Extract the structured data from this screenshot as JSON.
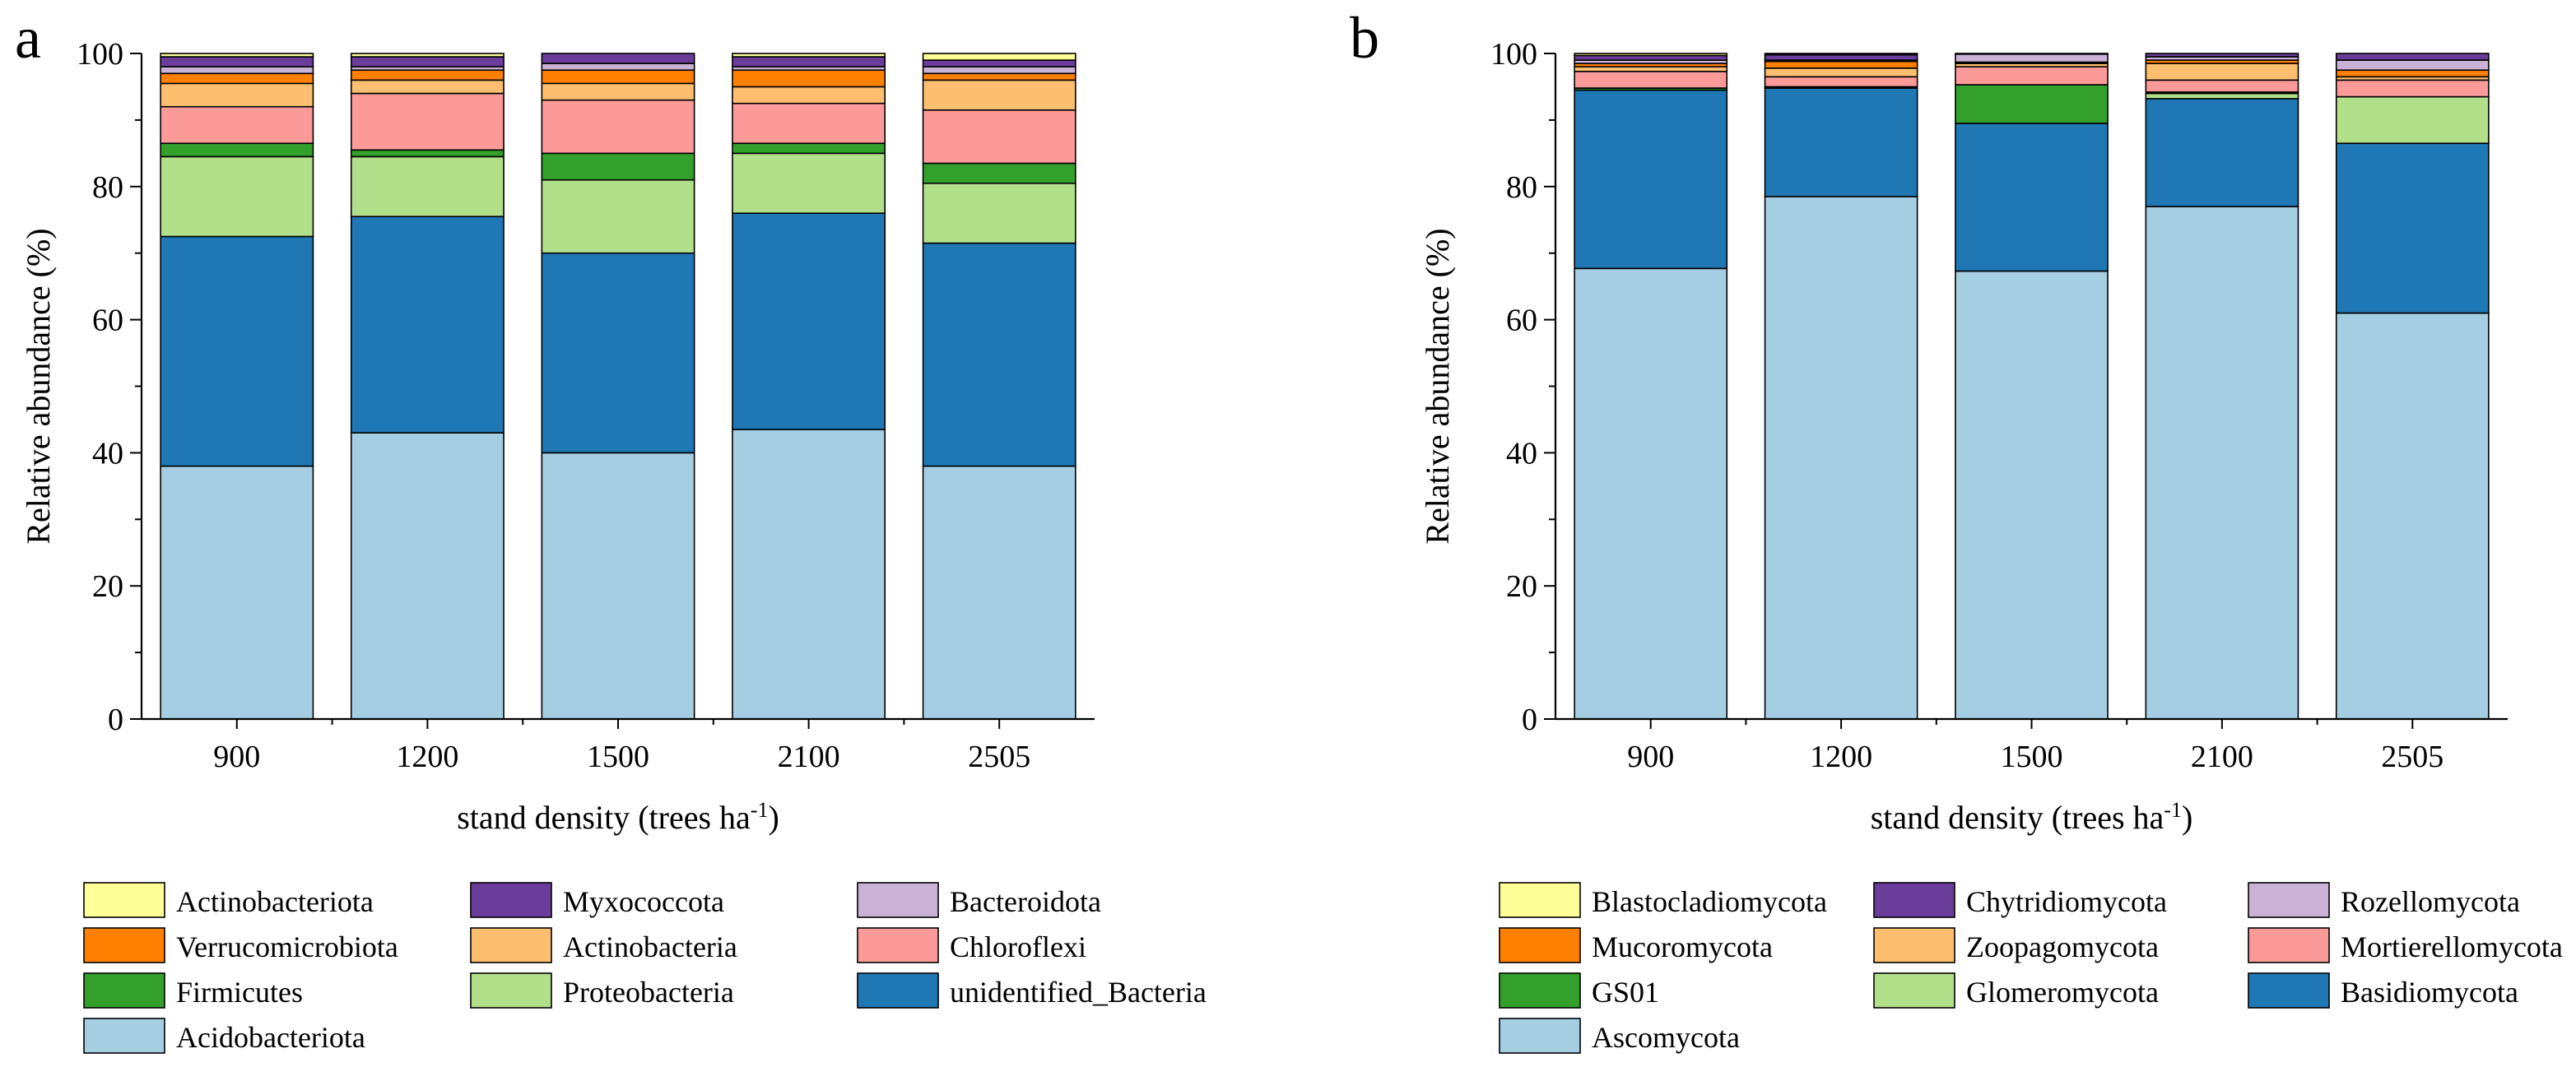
{
  "chart_data": [
    {
      "type": "bar",
      "stacked": true,
      "panel": "a",
      "categories": [
        "900",
        "1200",
        "1500",
        "2100",
        "2505"
      ],
      "xlabel": "stand density (trees ha",
      "xlabel_sup": "-1",
      "xlabel_end": ")",
      "ylabel": "Relative abundance (%)",
      "ylim": [
        0,
        100
      ],
      "yticks": [
        "0",
        "20",
        "40",
        "60",
        "80",
        "100"
      ],
      "legend_position": "bottom",
      "series": [
        {
          "name": "Acidobacteriota",
          "color": "#a6cee3",
          "values": [
            38.0,
            43.0,
            40.0,
            43.5,
            38.0
          ]
        },
        {
          "name": "unidentified_Bacteria",
          "color": "#1f78b4",
          "values": [
            34.5,
            32.5,
            30.0,
            32.5,
            33.5
          ]
        },
        {
          "name": "Proteobacteria",
          "color": "#b2df8a",
          "values": [
            12.0,
            9.0,
            11.0,
            9.0,
            9.0
          ]
        },
        {
          "name": "Firmicutes",
          "color": "#33a02c",
          "values": [
            2.0,
            1.0,
            4.0,
            1.5,
            3.0
          ]
        },
        {
          "name": "Chloroflexi",
          "color": "#fb9a99",
          "values": [
            5.5,
            8.5,
            8.0,
            6.0,
            8.0
          ]
        },
        {
          "name": "Actinobacteria",
          "color": "#fdbf6f",
          "values": [
            3.5,
            2.0,
            2.5,
            2.5,
            4.5
          ]
        },
        {
          "name": "Verrucomicrobiota",
          "color": "#ff7f00",
          "values": [
            1.5,
            1.5,
            2.0,
            2.5,
            1.0
          ]
        },
        {
          "name": "Bacteroidota",
          "color": "#cab2d6",
          "values": [
            1.0,
            0.5,
            1.0,
            0.5,
            1.0
          ]
        },
        {
          "name": "Myxococcota",
          "color": "#6a3d9a",
          "values": [
            1.5,
            1.5,
            1.5,
            1.5,
            1.0
          ]
        },
        {
          "name": "Actinobacteriota",
          "color": "#ffff99",
          "values": [
            0.5,
            0.5,
            0.0,
            0.5,
            1.0
          ]
        }
      ],
      "legend": [
        [
          "Actinobacteriota",
          "Myxococcota",
          "Bacteroidota"
        ],
        [
          "Verrucomicrobiota",
          "Actinobacteria",
          "Chloroflexi"
        ],
        [
          "Firmicutes",
          "Proteobacteria",
          "unidentified_Bacteria"
        ],
        [
          "Acidobacteriota"
        ]
      ]
    },
    {
      "type": "bar",
      "stacked": true,
      "panel": "b",
      "categories": [
        "900",
        "1200",
        "1500",
        "2100",
        "2505"
      ],
      "xlabel": "stand density (trees ha",
      "xlabel_sup": "-1",
      "xlabel_end": ")",
      "ylabel": "Relative abundance (%)",
      "ylim": [
        0,
        100
      ],
      "yticks": [
        "0",
        "20",
        "40",
        "60",
        "80",
        "100"
      ],
      "legend_position": "bottom",
      "series": [
        {
          "name": "Ascomycota",
          "color": "#a6cee3",
          "values": [
            67.7,
            78.5,
            67.3,
            77.0,
            61.0
          ]
        },
        {
          "name": "Basidiomycota",
          "color": "#1f78b4",
          "values": [
            26.8,
            16.3,
            22.2,
            16.2,
            25.5
          ]
        },
        {
          "name": "Glomeromycota",
          "color": "#b2df8a",
          "values": [
            0.0,
            0.0,
            0.0,
            0.8,
            7.0
          ]
        },
        {
          "name": "GS01",
          "color": "#33a02c",
          "values": [
            0.3,
            0.2,
            5.8,
            0.2,
            0.0
          ]
        },
        {
          "name": "Mortierellomycota",
          "color": "#fb9a99",
          "values": [
            2.5,
            1.5,
            2.7,
            1.8,
            2.5
          ]
        },
        {
          "name": "Zoopagomycota",
          "color": "#fdbf6f",
          "values": [
            0.7,
            1.3,
            0.5,
            2.5,
            0.5
          ]
        },
        {
          "name": "Mucoromycota",
          "color": "#ff7f00",
          "values": [
            0.5,
            1.0,
            0.2,
            0.5,
            1.0
          ]
        },
        {
          "name": "Rozellomycota",
          "color": "#cab2d6",
          "values": [
            0.5,
            0.2,
            1.2,
            0.5,
            1.5
          ]
        },
        {
          "name": "Chytridiomycota",
          "color": "#6a3d9a",
          "values": [
            0.7,
            0.8,
            0.1,
            0.5,
            1.0
          ]
        },
        {
          "name": "Blastocladiomycota",
          "color": "#ffff99",
          "values": [
            0.3,
            0.2,
            0.0,
            0.0,
            0.0
          ]
        }
      ],
      "legend": [
        [
          "Blastocladiomycota",
          "Chytridiomycota",
          "Rozellomycota"
        ],
        [
          "Mucoromycota",
          "Zoopagomycota",
          "Mortierellomycota"
        ],
        [
          "GS01",
          "Glomeromycota",
          "Basidiomycota"
        ],
        [
          "Ascomycota"
        ]
      ]
    }
  ]
}
